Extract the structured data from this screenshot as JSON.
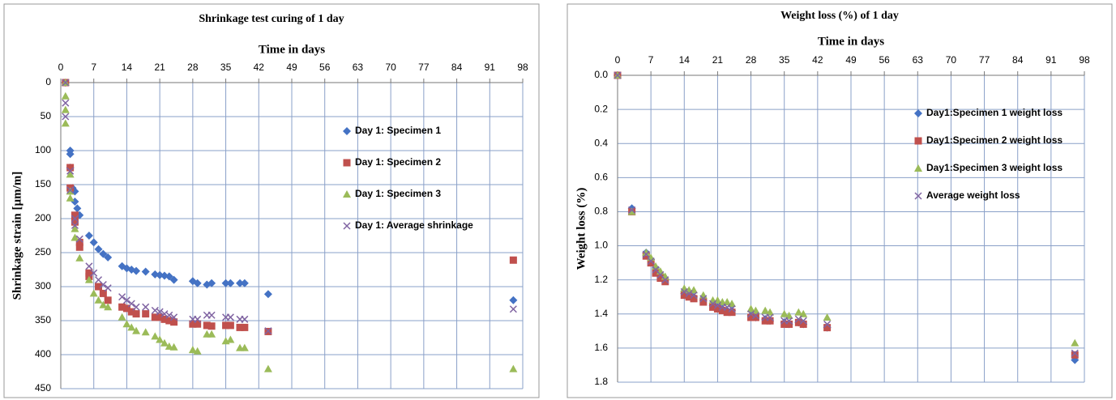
{
  "chart_data": [
    {
      "type": "scatter",
      "title": "Shrinkage test curing of 1 day",
      "x_label": "Time in days",
      "y_label": "Shrinkage strain [µm/m]",
      "xlim": [
        0,
        98
      ],
      "xticks": [
        0,
        7,
        14,
        21,
        28,
        35,
        42,
        49,
        56,
        63,
        70,
        77,
        84,
        91,
        98
      ],
      "ylim": [
        0,
        450
      ],
      "yticks": [
        0,
        50,
        100,
        150,
        200,
        250,
        300,
        350,
        400,
        450
      ],
      "y_reversed": true,
      "x_axis_position": "top",
      "grid": true,
      "legend": "right",
      "series": [
        {
          "name": "Day 1: Specimen 1",
          "color": "#4472c4",
          "marker": "diamond",
          "x": [
            1,
            2,
            2,
            2,
            2.5,
            3,
            3,
            3.5,
            4,
            6,
            7,
            8,
            9,
            10,
            13,
            14,
            15,
            16,
            18,
            20,
            21,
            22,
            23,
            24,
            28,
            29,
            31,
            32,
            35,
            36,
            38,
            39,
            44,
            96
          ],
          "values": [
            0,
            100,
            105,
            125,
            155,
            160,
            175,
            185,
            195,
            225,
            235,
            245,
            252,
            257,
            270,
            273,
            275,
            277,
            278,
            282,
            283,
            284,
            285,
            290,
            292,
            295,
            297,
            295,
            295,
            295,
            295,
            295,
            311,
            320
          ]
        },
        {
          "name": "Day 1: Specimen 2",
          "color": "#c0504d",
          "marker": "square",
          "x": [
            1,
            2,
            2,
            3,
            3,
            4,
            4,
            6,
            6,
            8,
            9,
            10,
            13,
            14,
            15,
            16,
            18,
            20,
            21,
            22,
            23,
            24,
            28,
            29,
            31,
            32,
            35,
            36,
            38,
            39,
            44,
            96
          ],
          "values": [
            0,
            125,
            155,
            195,
            205,
            235,
            242,
            280,
            285,
            300,
            310,
            320,
            330,
            332,
            337,
            340,
            340,
            345,
            345,
            348,
            350,
            352,
            355,
            355,
            357,
            358,
            357,
            357,
            360,
            360,
            366,
            261
          ]
        },
        {
          "name": "Day 1: Specimen 3",
          "color": "#9bbb59",
          "marker": "triangle",
          "x": [
            1,
            1,
            1,
            1,
            2,
            2,
            2,
            3,
            3,
            4,
            6,
            7,
            8,
            9,
            10,
            13,
            14,
            15,
            16,
            18,
            20,
            21,
            22,
            23,
            24,
            28,
            29,
            31,
            32,
            35,
            36,
            38,
            39,
            44,
            96
          ],
          "values": [
            0,
            20,
            40,
            60,
            135,
            160,
            170,
            215,
            228,
            258,
            290,
            310,
            320,
            327,
            330,
            345,
            355,
            360,
            365,
            367,
            373,
            378,
            383,
            388,
            389,
            393,
            395,
            370,
            370,
            380,
            378,
            390,
            390,
            421,
            421
          ]
        },
        {
          "name": "Day 1: Average shrinkage",
          "color": "#8064a2",
          "marker": "x",
          "x": [
            1,
            1,
            1,
            2,
            2,
            3,
            3,
            4,
            6,
            7,
            8,
            9,
            10,
            13,
            14,
            15,
            16,
            18,
            20,
            21,
            22,
            23,
            24,
            28,
            29,
            31,
            32,
            35,
            36,
            38,
            39,
            44,
            96
          ],
          "values": [
            0,
            30,
            50,
            130,
            158,
            200,
            210,
            230,
            270,
            280,
            290,
            297,
            302,
            315,
            320,
            325,
            330,
            330,
            335,
            337,
            340,
            342,
            345,
            348,
            348,
            342,
            342,
            345,
            345,
            348,
            348,
            365,
            333
          ]
        }
      ]
    },
    {
      "type": "scatter",
      "title": "Weight loss (%) of 1 day",
      "x_label": "Time in days",
      "y_label": "Weight loss (%)",
      "xlim": [
        0,
        98
      ],
      "xticks": [
        0,
        7,
        14,
        21,
        28,
        35,
        42,
        49,
        56,
        63,
        70,
        77,
        84,
        91,
        98
      ],
      "ylim": [
        0,
        1.8
      ],
      "yticks": [
        {
          "value": 0,
          "label": "0.0"
        },
        0.2,
        0.4,
        0.6,
        0.8,
        {
          "value": 1,
          "label": "1.0"
        },
        1.2,
        1.4,
        1.6,
        1.8
      ],
      "y_reversed": true,
      "x_axis_position": "top",
      "grid": true,
      "legend": "right",
      "series": [
        {
          "name": "Day1:Specimen 1 weight loss",
          "color": "#4472c4",
          "marker": "diamond",
          "x": [
            0,
            3,
            6,
            7,
            8,
            9,
            10,
            14,
            15,
            16,
            18,
            20,
            21,
            22,
            23,
            24,
            28,
            29,
            31,
            32,
            35,
            36,
            38,
            39,
            44,
            96
          ],
          "values": [
            0,
            0.78,
            1.04,
            1.08,
            1.13,
            1.17,
            1.2,
            1.28,
            1.29,
            1.3,
            1.32,
            1.35,
            1.36,
            1.37,
            1.38,
            1.38,
            1.41,
            1.42,
            1.43,
            1.44,
            1.45,
            1.46,
            1.45,
            1.46,
            1.48,
            1.67
          ]
        },
        {
          "name": "Day1:Specimen 2 weight loss",
          "color": "#c0504d",
          "marker": "square",
          "x": [
            0,
            3,
            6,
            7,
            8,
            9,
            10,
            14,
            15,
            16,
            18,
            20,
            21,
            22,
            23,
            24,
            28,
            29,
            31,
            32,
            35,
            36,
            38,
            39,
            44,
            96
          ],
          "values": [
            0,
            0.8,
            1.06,
            1.1,
            1.16,
            1.19,
            1.21,
            1.29,
            1.3,
            1.31,
            1.33,
            1.36,
            1.37,
            1.38,
            1.39,
            1.39,
            1.42,
            1.42,
            1.44,
            1.44,
            1.46,
            1.46,
            1.45,
            1.46,
            1.48,
            1.64
          ]
        },
        {
          "name": "Day1:Specimen 3 weight loss",
          "color": "#9bbb59",
          "marker": "triangle",
          "x": [
            0,
            3,
            6,
            7,
            8,
            9,
            10,
            14,
            15,
            16,
            18,
            20,
            21,
            22,
            23,
            24,
            28,
            29,
            31,
            32,
            35,
            36,
            38,
            39,
            44,
            96
          ],
          "values": [
            0,
            0.8,
            1.04,
            1.07,
            1.12,
            1.15,
            1.18,
            1.25,
            1.26,
            1.26,
            1.29,
            1.32,
            1.32,
            1.33,
            1.33,
            1.34,
            1.37,
            1.38,
            1.38,
            1.39,
            1.4,
            1.41,
            1.39,
            1.4,
            1.42,
            1.57
          ]
        },
        {
          "name": "Average weight loss",
          "color": "#8064a2",
          "marker": "x",
          "x": [
            0,
            3,
            6,
            7,
            8,
            9,
            10,
            14,
            15,
            16,
            18,
            20,
            21,
            22,
            23,
            24,
            28,
            29,
            31,
            32,
            35,
            36,
            38,
            39,
            44,
            96
          ],
          "values": [
            0,
            0.79,
            1.05,
            1.09,
            1.14,
            1.17,
            1.2,
            1.27,
            1.28,
            1.29,
            1.31,
            1.34,
            1.35,
            1.36,
            1.36,
            1.37,
            1.4,
            1.41,
            1.42,
            1.42,
            1.44,
            1.44,
            1.43,
            1.44,
            1.46,
            1.63
          ]
        }
      ]
    }
  ]
}
